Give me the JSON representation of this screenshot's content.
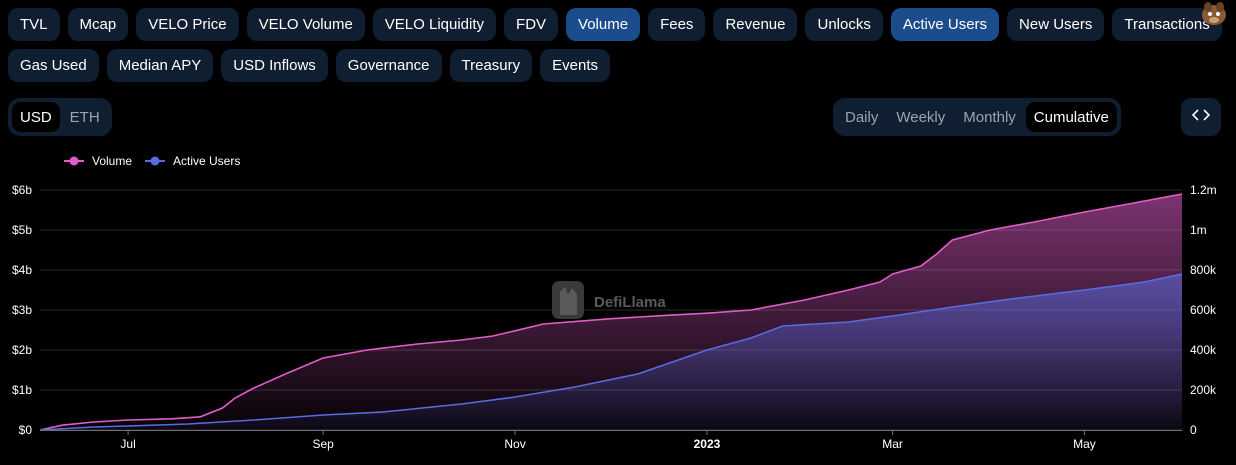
{
  "metrics_row1": [
    {
      "label": "TVL",
      "active": false
    },
    {
      "label": "Mcap",
      "active": false
    },
    {
      "label": "VELO Price",
      "active": false
    },
    {
      "label": "VELO Volume",
      "active": false
    },
    {
      "label": "VELO Liquidity",
      "active": false
    },
    {
      "label": "FDV",
      "active": false
    },
    {
      "label": "Volume",
      "active": true
    },
    {
      "label": "Fees",
      "active": false
    },
    {
      "label": "Revenue",
      "active": false
    },
    {
      "label": "Unlocks",
      "active": false
    },
    {
      "label": "Active Users",
      "active": true
    },
    {
      "label": "New Users",
      "active": false
    },
    {
      "label": "Transactions",
      "active": false
    }
  ],
  "metrics_row2": [
    {
      "label": "Gas Used",
      "active": false
    },
    {
      "label": "Median APY",
      "active": false
    },
    {
      "label": "USD Inflows",
      "active": false
    },
    {
      "label": "Governance",
      "active": false
    },
    {
      "label": "Treasury",
      "active": false
    },
    {
      "label": "Events",
      "active": false
    }
  ],
  "denomination": {
    "options": [
      "USD",
      "ETH"
    ],
    "selected": "USD"
  },
  "period": {
    "options": [
      "Daily",
      "Weekly",
      "Monthly",
      "Cumulative"
    ],
    "selected": "Cumulative"
  },
  "embed_icon": "code-icon",
  "logo_icon": "llama-logo-icon",
  "watermark": {
    "text": "DefiLlama",
    "icon": "defillama-logo-icon"
  },
  "colors": {
    "volume": "#e15eca",
    "active_users": "#5b6ae0",
    "active_button": "#1b4d8c",
    "button": "#0f1e31",
    "background": "#000000"
  },
  "chart_data": {
    "type": "area",
    "legend": {
      "placement": "top-left"
    },
    "x_tick_labels": [
      "Jul",
      "Sep",
      "Nov",
      "2023",
      "Mar",
      "May"
    ],
    "x_ticks": [
      "2022-07-01",
      "2022-09-01",
      "2022-11-01",
      "2023-01-01",
      "2023-03-01",
      "2023-05-01"
    ],
    "x_range": [
      "2022-06-03",
      "2023-06-01"
    ],
    "y_left": {
      "ticks": [
        0,
        1,
        2,
        3,
        4,
        5,
        6
      ],
      "tick_labels": [
        "$0",
        "$1b",
        "$2b",
        "$3b",
        "$4b",
        "$5b",
        "$6b"
      ],
      "ylim": [
        0,
        6
      ],
      "unit": "billion USD"
    },
    "y_right": {
      "ticks": [
        0,
        200000,
        400000,
        600000,
        800000,
        1000000,
        1200000
      ],
      "tick_labels": [
        "0",
        "200k",
        "400k",
        "600k",
        "800k",
        "1m",
        "1.2m"
      ],
      "ylim": [
        0,
        1200000
      ]
    },
    "grid": true,
    "series": [
      {
        "name": "Volume",
        "axis": "left",
        "x": [
          "2022-06-03",
          "2022-06-10",
          "2022-06-20",
          "2022-07-01",
          "2022-07-15",
          "2022-07-24",
          "2022-07-31",
          "2022-08-04",
          "2022-08-10",
          "2022-08-20",
          "2022-09-01",
          "2022-09-15",
          "2022-10-01",
          "2022-10-15",
          "2022-10-25",
          "2022-11-01",
          "2022-11-10",
          "2022-12-01",
          "2022-12-20",
          "2023-01-01",
          "2023-01-15",
          "2023-02-01",
          "2023-02-15",
          "2023-02-25",
          "2023-03-01",
          "2023-03-10",
          "2023-03-15",
          "2023-03-20",
          "2023-04-01",
          "2023-04-15",
          "2023-05-01",
          "2023-05-15",
          "2023-06-01"
        ],
        "values": [
          0.0,
          0.12,
          0.2,
          0.25,
          0.28,
          0.33,
          0.55,
          0.8,
          1.05,
          1.4,
          1.8,
          2.0,
          2.15,
          2.25,
          2.35,
          2.48,
          2.65,
          2.78,
          2.87,
          2.92,
          3.0,
          3.25,
          3.5,
          3.7,
          3.9,
          4.1,
          4.4,
          4.75,
          5.0,
          5.2,
          5.45,
          5.65,
          5.9
        ]
      },
      {
        "name": "Active Users",
        "axis": "right",
        "x": [
          "2022-06-03",
          "2022-06-20",
          "2022-07-01",
          "2022-07-20",
          "2022-08-10",
          "2022-09-01",
          "2022-09-20",
          "2022-10-15",
          "2022-11-01",
          "2022-11-20",
          "2022-12-10",
          "2023-01-01",
          "2023-01-15",
          "2023-01-25",
          "2023-02-15",
          "2023-03-01",
          "2023-03-20",
          "2023-04-10",
          "2023-05-01",
          "2023-05-20",
          "2023-06-01"
        ],
        "values": [
          0,
          15000,
          20000,
          30000,
          50000,
          75000,
          90000,
          130000,
          165000,
          215000,
          280000,
          400000,
          460000,
          520000,
          540000,
          570000,
          615000,
          660000,
          700000,
          740000,
          780000
        ]
      }
    ]
  }
}
